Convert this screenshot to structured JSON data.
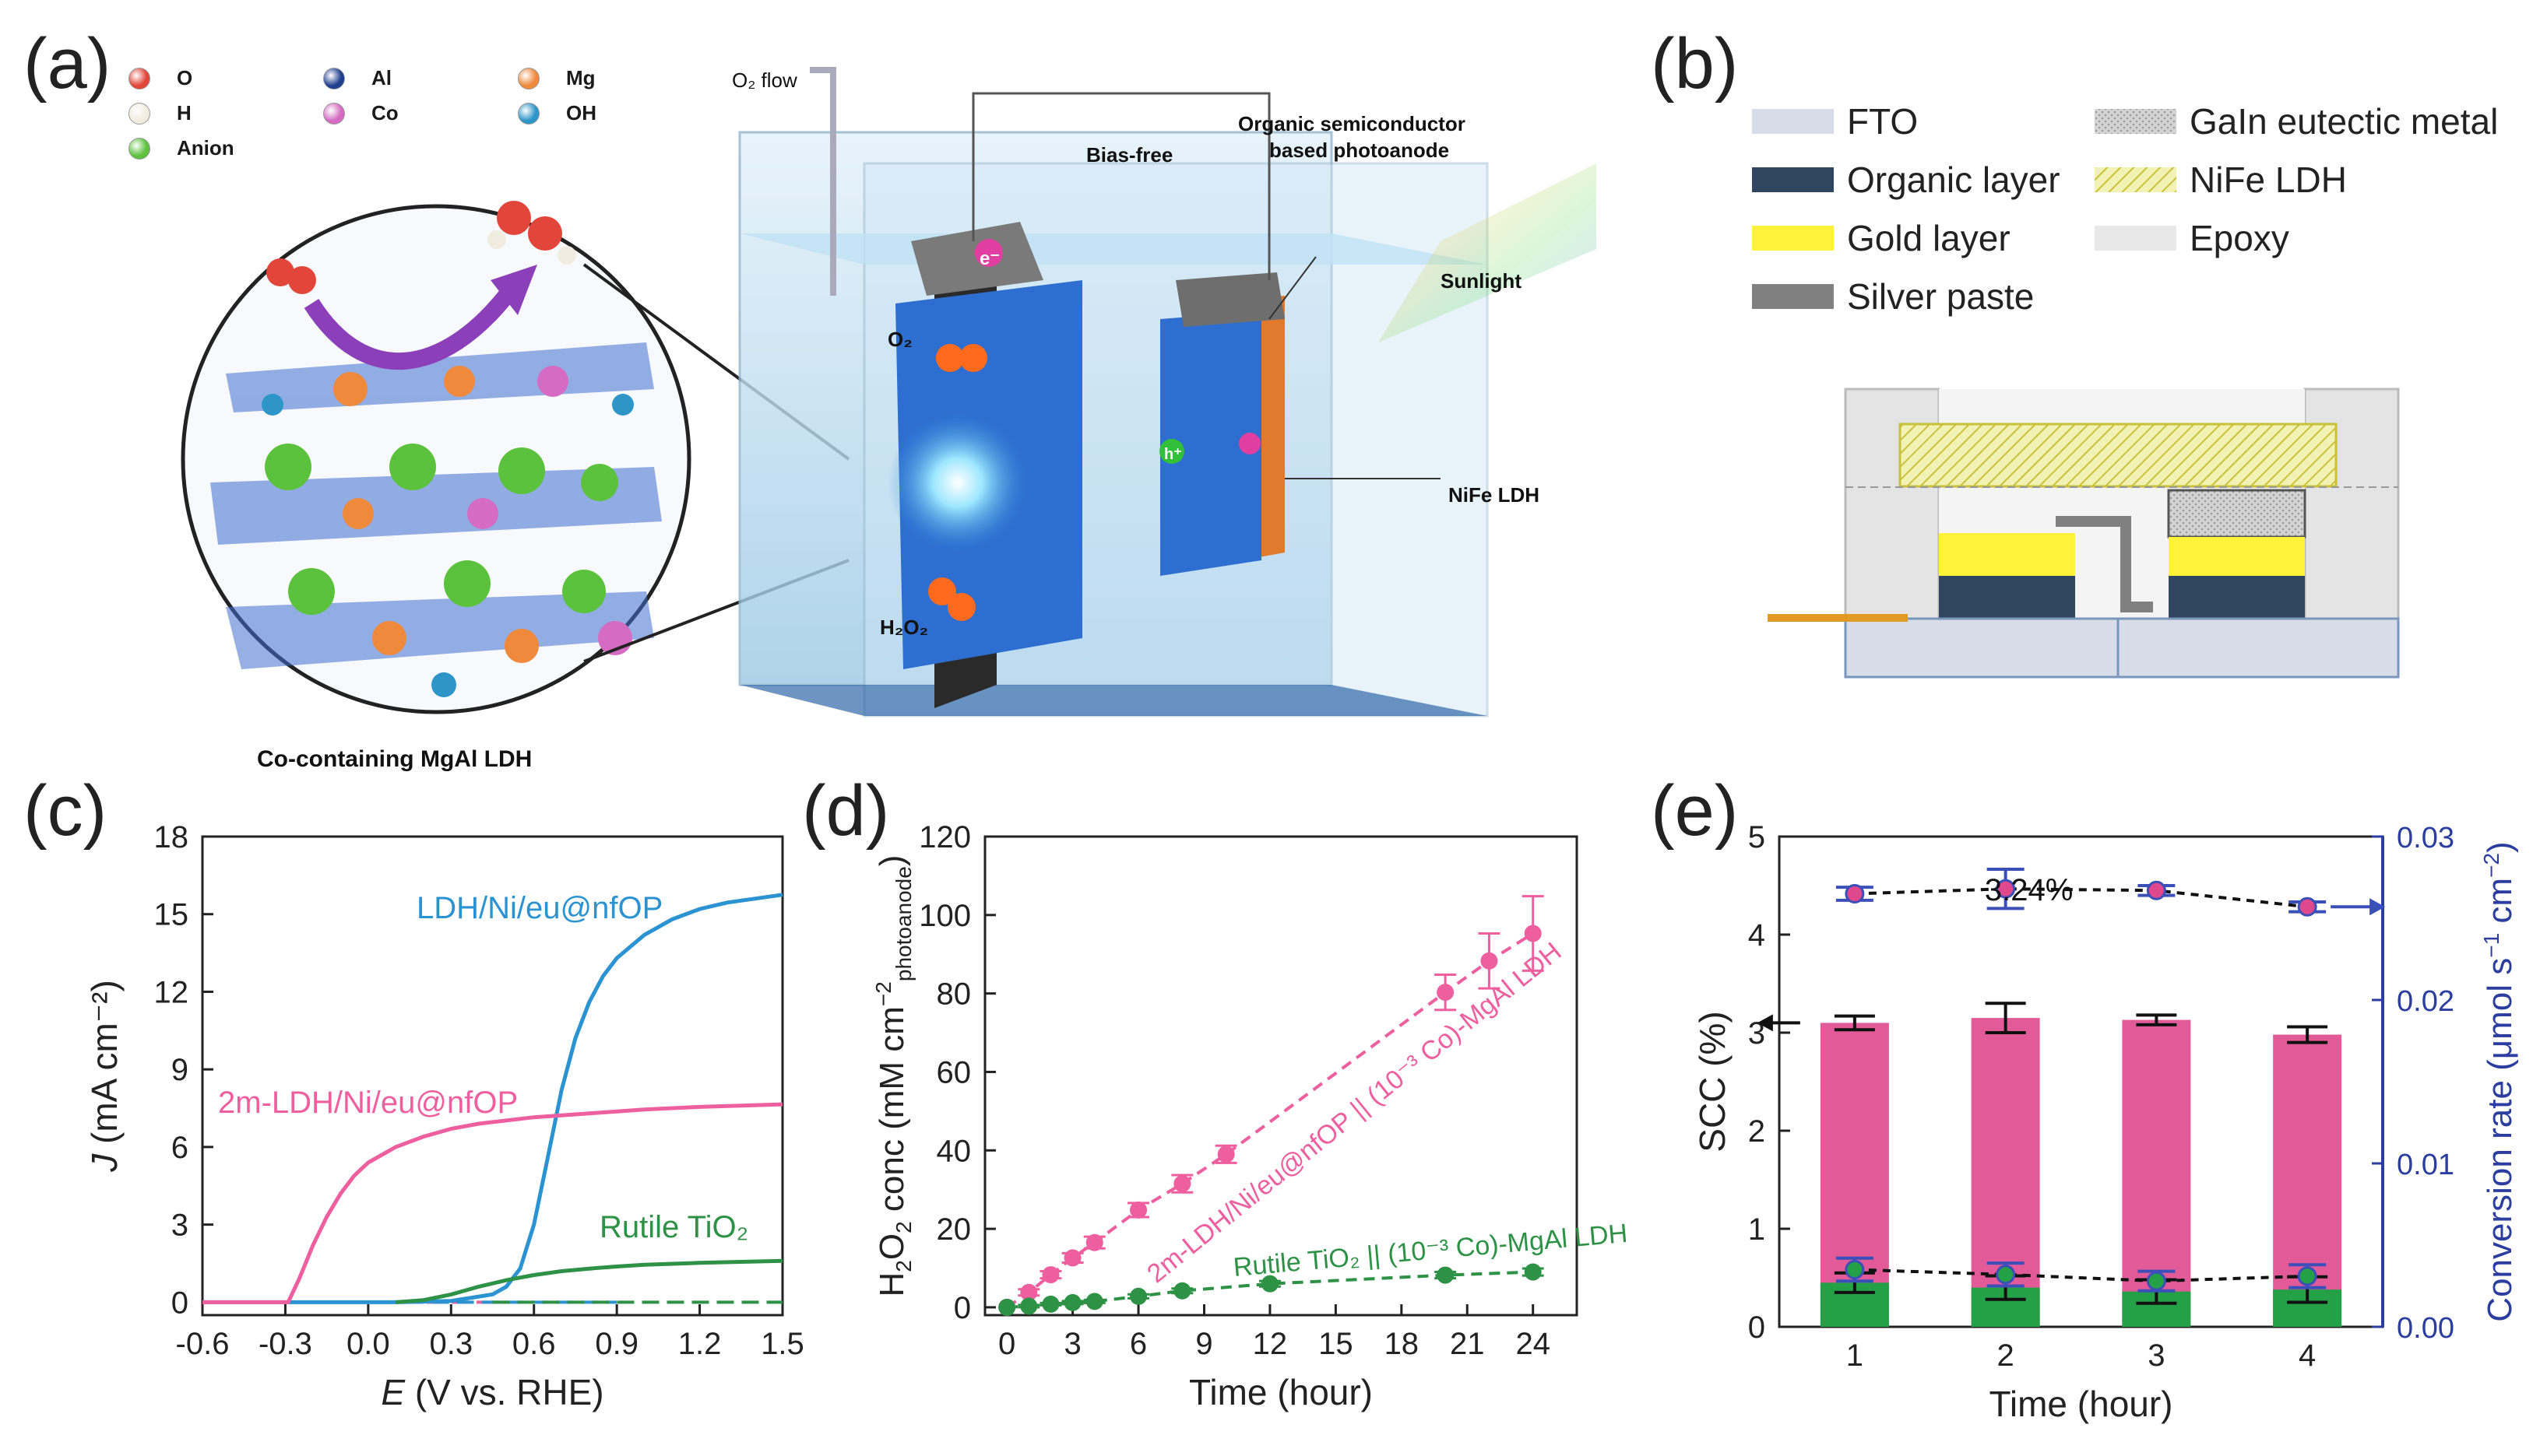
{
  "panels": {
    "a": {
      "letter": "(a)",
      "legend": [
        {
          "sym": "O",
          "color": "#e2463a"
        },
        {
          "sym": "Al",
          "color": "#1f3f8f"
        },
        {
          "sym": "Mg",
          "color": "#ef8a3c"
        },
        {
          "sym": "H",
          "color": "#f2ebe0"
        },
        {
          "sym": "Co",
          "color": "#d56bc2"
        },
        {
          "sym": "OH",
          "color": "#2e95c8"
        },
        {
          "sym": "Anion",
          "color": "#5cc23e"
        }
      ],
      "caption": "Co-containing MgAl LDH",
      "labels": {
        "o2_flow": "O₂ flow",
        "bias_free": "Bias-free",
        "photoanode_line1": "Organic semiconductor",
        "photoanode_line2": "based photoanode",
        "sunlight": "Sunlight",
        "nife": "NiFe LDH",
        "o2": "O₂",
        "h2o2": "H₂O₂",
        "electron": "e⁻",
        "hole": "h⁺"
      }
    },
    "b": {
      "letter": "(b)",
      "legend": [
        {
          "label": "FTO",
          "color": "#d6dde8",
          "pattern": "solid"
        },
        {
          "label": "GaIn eutectic metal",
          "color": "#c9c9c9",
          "pattern": "dots"
        },
        {
          "label": "Organic layer",
          "color": "#2f4560",
          "pattern": "solid"
        },
        {
          "label": "NiFe LDH",
          "color": "#e6e48a",
          "pattern": "hatch"
        },
        {
          "label": "Gold layer",
          "color": "#fff33a",
          "pattern": "solid"
        },
        {
          "label": "Epoxy",
          "color": "#e8e8e8",
          "pattern": "solid"
        },
        {
          "label": "Silver paste",
          "color": "#808080",
          "pattern": "solid"
        }
      ]
    },
    "c": {
      "letter": "(c)"
    },
    "d": {
      "letter": "(d)"
    },
    "e": {
      "letter": "(e)"
    }
  },
  "chart_data": [
    {
      "id": "c",
      "type": "line",
      "xlabel_e": "E",
      "xlabel_rest": " (V vs. RHE)",
      "ylabel_j": "J",
      "ylabel_rest": " (mA cm⁻²)",
      "xlim": [
        -0.6,
        1.5
      ],
      "ylim": [
        -0.5,
        18
      ],
      "xticks": [
        "-0.6",
        "-0.3",
        "0.0",
        "0.3",
        "0.6",
        "0.9",
        "1.2",
        "1.5"
      ],
      "yticks": [
        "0",
        "3",
        "6",
        "9",
        "12",
        "15",
        "18"
      ],
      "series": [
        {
          "name": "LDH/Ni/eu@nfOP",
          "color": "#2b93d1",
          "x": [
            -0.6,
            0.1,
            0.3,
            0.45,
            0.5,
            0.55,
            0.6,
            0.65,
            0.7,
            0.75,
            0.8,
            0.85,
            0.9,
            1.0,
            1.1,
            1.2,
            1.3,
            1.4,
            1.5
          ],
          "y": [
            0,
            0,
            0.05,
            0.3,
            0.6,
            1.3,
            3.0,
            5.6,
            8.2,
            10.2,
            11.6,
            12.6,
            13.3,
            14.2,
            14.8,
            15.2,
            15.45,
            15.6,
            15.75
          ]
        },
        {
          "name": "2m-LDH/Ni/eu@nfOP",
          "color": "#ee5f9f",
          "x": [
            -0.6,
            -0.29,
            -0.25,
            -0.2,
            -0.15,
            -0.1,
            -0.05,
            0.0,
            0.1,
            0.2,
            0.3,
            0.4,
            0.6,
            0.8,
            1.0,
            1.2,
            1.5
          ],
          "y": [
            0,
            0,
            0.9,
            2.2,
            3.3,
            4.2,
            4.9,
            5.4,
            6.0,
            6.4,
            6.7,
            6.9,
            7.15,
            7.3,
            7.45,
            7.55,
            7.65
          ]
        },
        {
          "name": "Rutile TiO₂",
          "color": "#2d9146",
          "x": [
            0.1,
            0.2,
            0.3,
            0.4,
            0.5,
            0.6,
            0.7,
            0.8,
            0.9,
            1.0,
            1.2,
            1.5
          ],
          "y": [
            0,
            0.08,
            0.3,
            0.6,
            0.85,
            1.05,
            1.2,
            1.3,
            1.38,
            1.45,
            1.52,
            1.6
          ]
        }
      ],
      "dark_baseline_colors": [
        "#ee5f9f",
        "#2b93d1",
        "#2d9146"
      ]
    },
    {
      "id": "d",
      "type": "scatter",
      "xlabel": "Time (hour)",
      "ylabel_pre": "H",
      "ylabel_sub": "2",
      "ylabel_mid": "O",
      "ylabel_sub2": "2",
      "ylabel_post": " conc (mM cm",
      "ylabel_sup": "−2",
      "ylabel_sub3": "photoanode",
      "ylabel_end": ")",
      "xlim": [
        -1,
        26
      ],
      "ylim": [
        -2,
        120
      ],
      "xticks": [
        0,
        3,
        6,
        9,
        12,
        15,
        18,
        21,
        24
      ],
      "yticks": [
        0,
        20,
        40,
        60,
        80,
        100,
        120
      ],
      "series": [
        {
          "name": "2m-LDH/Ni/eu@nfOP || (10⁻³ Co)-MgAl LDH",
          "color": "#ee5f9f",
          "x": [
            0,
            1,
            2,
            3,
            4,
            6,
            8,
            10,
            20,
            22,
            24
          ],
          "y": [
            0,
            3.8,
            8.3,
            12.6,
            16.5,
            24.8,
            31.5,
            39,
            80.3,
            88.3,
            95.3
          ],
          "err": [
            0,
            0.8,
            0.9,
            1.2,
            1.5,
            1.8,
            2.2,
            2.2,
            4.5,
            7,
            9.5
          ]
        },
        {
          "name": "Rutile TiO₂ || (10⁻³ Co)-MgAl LDH",
          "color": "#2d9146",
          "x": [
            0,
            1,
            2,
            3,
            4,
            6,
            8,
            12,
            20,
            24
          ],
          "y": [
            0,
            0.3,
            0.8,
            1.2,
            1.5,
            2.8,
            4.2,
            6.0,
            8.2,
            9.0
          ],
          "err": [
            0,
            0.3,
            0.3,
            0.4,
            0.4,
            0.5,
            0.6,
            0.7,
            0.8,
            0.9
          ]
        }
      ]
    },
    {
      "id": "e",
      "type": "bar",
      "xlabel": "Time (hour)",
      "ylabel_left": "SCC (%)",
      "ylabel_right_pre": "Conversion rate (μmol s",
      "ylabel_right_sup1": "−1",
      "ylabel_right_mid": " cm",
      "ylabel_right_sup2": "−2",
      "ylabel_right_end": ")",
      "categories": [
        "1",
        "2",
        "3",
        "4"
      ],
      "ylim_left": [
        0,
        5
      ],
      "ylim_right": [
        0,
        0.03
      ],
      "yticks_left": [
        "0",
        "1",
        "2",
        "3",
        "4",
        "5"
      ],
      "yticks_right": [
        "0.00",
        "0.01",
        "0.02",
        "0.03"
      ],
      "annotation": "3.24%",
      "bars": [
        {
          "color": "#e0488e",
          "values": [
            3.1,
            3.15,
            3.13,
            2.98
          ],
          "err": [
            0.07,
            0.15,
            0.05,
            0.08
          ]
        },
        {
          "color": "#24a046",
          "values": [
            0.45,
            0.4,
            0.36,
            0.38
          ],
          "err": [
            0.1,
            0.12,
            0.12,
            0.13
          ]
        }
      ],
      "conv_upper": {
        "values": [
          0.0265,
          0.0268,
          0.0267,
          0.0257
        ],
        "err": [
          0.0004,
          0.0012,
          0.0003,
          0.0003
        ]
      },
      "conv_lower": {
        "values": [
          0.0035,
          0.0032,
          0.0028,
          0.0031
        ],
        "err": [
          0.0007,
          0.0007,
          0.0006,
          0.0007
        ]
      }
    }
  ]
}
